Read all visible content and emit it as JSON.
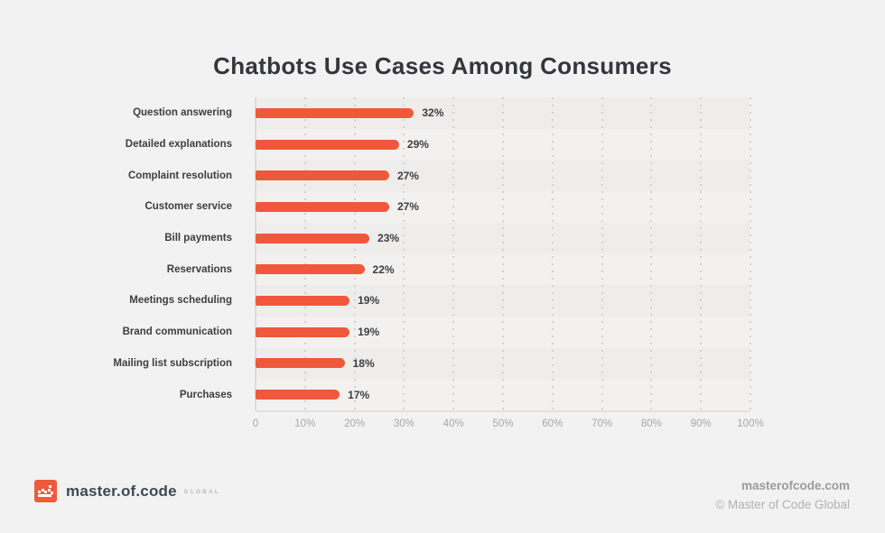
{
  "title": "Chatbots Use Cases Among Consumers",
  "chart_data": {
    "type": "bar",
    "orientation": "horizontal",
    "title": "Chatbots Use Cases Among Consumers",
    "categories": [
      "Question answering",
      "Detailed explanations",
      "Complaint resolution",
      "Customer service",
      "Bill payments",
      "Reservations",
      "Meetings scheduling",
      "Brand communication",
      "Mailing list subscription",
      "Purchases"
    ],
    "values": [
      32,
      29,
      27,
      27,
      23,
      22,
      19,
      19,
      18,
      17
    ],
    "value_labels": [
      "32%",
      "29%",
      "27%",
      "27%",
      "23%",
      "22%",
      "19%",
      "19%",
      "18%",
      "17%"
    ],
    "xticks": [
      "0",
      "10%",
      "20%",
      "30%",
      "40%",
      "50%",
      "60%",
      "70%",
      "80%",
      "90%",
      "100%"
    ],
    "xlim": [
      0,
      100
    ],
    "bar_color": "#F0583C",
    "grid": "dotted-vertical-every-10pct",
    "legend": "none"
  },
  "footer": {
    "logo_text": "master.of.code",
    "logo_suffix": "GLOBAL",
    "website": "masterofcode.com",
    "copyright": "© Master of Code Global"
  }
}
